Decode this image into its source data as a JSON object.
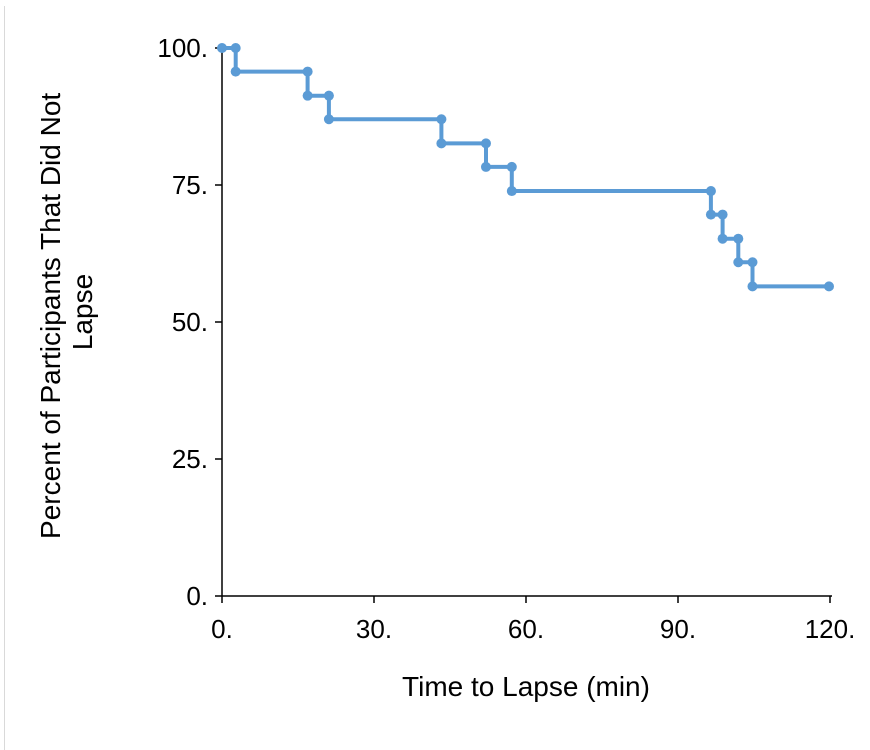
{
  "chart_data": {
    "type": "line",
    "title": "",
    "xlabel": "Time to Lapse (min)",
    "ylabel": "Percent of Participants That Did Not Lapse",
    "ylabel_lines": [
      "Percent of Participants That Did Not",
      "Lapse"
    ],
    "xlim": [
      0,
      120
    ],
    "ylim": [
      0,
      100
    ],
    "x_ticks": [
      0,
      30,
      60,
      90,
      120
    ],
    "x_tick_labels": [
      "0.",
      "30.",
      "60.",
      "90.",
      "120."
    ],
    "y_ticks": [
      0,
      25,
      50,
      75,
      100
    ],
    "y_tick_labels": [
      "0.",
      "25.",
      "50.",
      "75.",
      "100."
    ],
    "grid": false,
    "legend": "none",
    "line_color": "#5b9bd5",
    "series": [
      {
        "x": [
          0,
          2.7,
          2.7,
          16.9,
          16.9,
          21.1,
          21.1,
          43.3,
          43.3,
          52.1,
          52.1,
          57.2,
          57.2,
          96.5,
          96.5,
          98.8,
          98.8,
          101.9,
          101.9,
          104.7,
          104.7,
          119.8
        ],
        "y": [
          100,
          100,
          95.7,
          95.7,
          91.3,
          91.3,
          87.0,
          87.0,
          82.6,
          82.6,
          78.3,
          78.3,
          73.9,
          73.9,
          69.6,
          69.6,
          65.2,
          65.2,
          60.9,
          60.9,
          56.5,
          56.5
        ]
      }
    ]
  }
}
